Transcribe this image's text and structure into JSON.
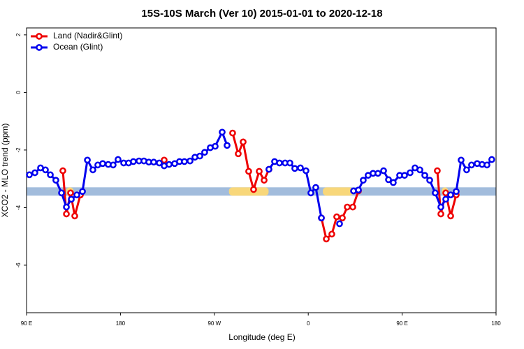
{
  "chart_data": {
    "type": "line",
    "title": "15S-10S March (Ver 10)   2015-01-01 to 2020-12-18",
    "x_label": "Longitude (deg E)",
    "y_label": "XCO2 - MLO trend (ppm)",
    "xlim": [
      90,
      540
    ],
    "ylim": [
      -7.65,
      2.24
    ],
    "xticks": [
      {
        "value": 90,
        "label": "90 E"
      },
      180,
      {
        "value": 270,
        "label": "90 W"
      },
      {
        "value": 360,
        "label": "0"
      },
      {
        "value": 450,
        "label": "90 E"
      },
      {
        "value": 540,
        "label": "180"
      }
    ],
    "yticks": [
      -6,
      -4,
      -2,
      0,
      2
    ],
    "legend": "top-left",
    "band": {
      "y": -3.44,
      "ocean_color": "#a2bcdc",
      "land_color": "#f8d77a",
      "land_ranges": [
        [
          128,
          135
        ],
        [
          284,
          322
        ],
        [
          374,
          403
        ],
        [
          488,
          494
        ]
      ]
    },
    "series": [
      {
        "name": "Land (Nadir&Glint)",
        "color": "#ee0000",
        "x": [
          124.8,
          128.2,
          132.2,
          136.2,
          141.6,
          null,
          221.9,
          null,
          287.5,
          292.9,
          297.6,
          302.9,
          307.6,
          313.0,
          317.7,
          322.3,
          null,
          372.6,
          377.3,
          382.6,
          387.3,
          392.7,
          397.4,
          402.7,
          408.1,
          null,
          483.7,
          487.1,
          491.8,
          496.5,
          501.8
        ],
        "values": [
          -2.72,
          -4.22,
          -3.49,
          -4.29,
          -3.56,
          null,
          -2.35,
          null,
          -1.41,
          -2.13,
          -1.72,
          -2.74,
          -3.37,
          -2.74,
          -3.05,
          -2.67,
          null,
          -4.36,
          -5.09,
          -4.92,
          -4.32,
          -4.36,
          -3.98,
          -3.98,
          -3.42,
          null,
          -2.72,
          -4.22,
          -3.49,
          -4.29,
          -3.56
        ]
      },
      {
        "name": "Ocean (Glint)",
        "color": "#0000ee",
        "x": [
          92.7,
          98.0,
          103.4,
          108.1,
          112.8,
          118.1,
          123.5,
          128.2,
          132.9,
          138.2,
          143.6,
          148.3,
          153.6,
          158.3,
          163.0,
          168.3,
          173.0,
          177.7,
          183.1,
          187.8,
          192.4,
          197.8,
          202.5,
          207.2,
          211.9,
          217.2,
          221.9,
          226.6,
          232.0,
          236.6,
          241.3,
          246.7,
          251.4,
          256.1,
          260.7,
          266.1,
          270.8,
          277.5,
          282.2,
          null,
          322.3,
          327.7,
          332.4,
          337.8,
          342.4,
          347.1,
          352.5,
          357.8,
          362.5,
          367.2,
          372.6,
          null,
          390.0,
          null,
          403.4,
          408.1,
          412.7,
          417.4,
          422.1,
          426.8,
          432.2,
          436.9,
          441.5,
          447.6,
          452.3,
          457.6,
          462.3,
          467.0,
          471.7,
          476.4,
          481.7,
          487.1,
          491.8,
          496.5,
          501.8,
          506.5,
          511.8,
          516.5,
          521.9,
          526.6,
          531.3,
          535.9
        ],
        "values": [
          -2.86,
          -2.79,
          -2.62,
          -2.69,
          -2.86,
          -3.05,
          -3.49,
          -3.98,
          -3.71,
          -3.56,
          -3.44,
          -2.35,
          -2.69,
          -2.52,
          -2.47,
          -2.5,
          -2.52,
          -2.33,
          -2.45,
          -2.45,
          -2.4,
          -2.38,
          -2.38,
          -2.42,
          -2.42,
          -2.45,
          -2.55,
          -2.5,
          -2.47,
          -2.4,
          -2.4,
          -2.38,
          -2.25,
          -2.21,
          -2.08,
          -1.92,
          -1.87,
          -1.38,
          -1.84,
          null,
          -2.67,
          -2.4,
          -2.45,
          -2.45,
          -2.45,
          -2.64,
          -2.62,
          -2.72,
          -3.49,
          -3.3,
          -4.36,
          null,
          -4.56,
          null,
          -3.42,
          -3.39,
          -3.05,
          -2.88,
          -2.81,
          -2.81,
          -2.72,
          -3.03,
          -3.13,
          -2.88,
          -2.88,
          -2.79,
          -2.62,
          -2.69,
          -2.88,
          -3.05,
          -3.49,
          -3.98,
          -3.71,
          -3.56,
          -3.44,
          -2.35,
          -2.69,
          -2.52,
          -2.47,
          -2.5,
          -2.52,
          -2.33
        ]
      }
    ]
  }
}
